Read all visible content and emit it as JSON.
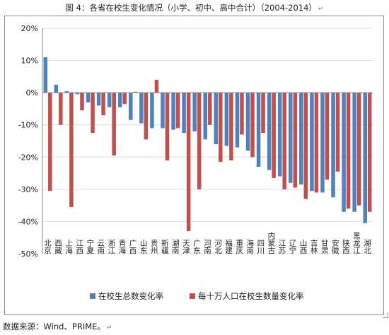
{
  "title": "图 4：各省在校生变化情况（小学、初中、高中合计）（2004-2014）",
  "source": "数据来源：Wind、PRIME。",
  "colors": {
    "series1": "#4f81bd",
    "series2": "#c0504d",
    "grid": "#d9d9d9",
    "axis": "#888888"
  },
  "chart_data": {
    "type": "bar",
    "ylim": [
      -50,
      20
    ],
    "yticks": [
      20,
      10,
      0,
      -10,
      -20,
      -30,
      -40,
      -50
    ],
    "ytick_labels": [
      "20%",
      "10%",
      "0%",
      "-10%",
      "-20%",
      "-30%",
      "-40%",
      "-50%"
    ],
    "grid": true,
    "legend": "bottom",
    "categories": [
      "北京",
      "西藏",
      "上海",
      "江西",
      "宁夏",
      "云南",
      "浙江",
      "青海",
      "广西",
      "山东",
      "贵州",
      "新疆",
      "湖南",
      "天津",
      "广东",
      "河南",
      "河北",
      "福建",
      "重庆",
      "海南",
      "四川",
      "内蒙古",
      "江苏",
      "辽宁",
      "山西",
      "吉林",
      "甘肃",
      "安徽",
      "陕西",
      "黑龙江",
      "湖北"
    ],
    "series": [
      {
        "name": "在校生总数变化率",
        "color": "#4f81bd",
        "values": [
          11,
          2.5,
          0.5,
          -0.5,
          -3,
          -4,
          -4.5,
          -4.5,
          -8.5,
          -9.5,
          -11,
          -11,
          -11.5,
          -12.5,
          -12,
          -14.5,
          -16,
          -16.5,
          -17,
          -18,
          -23,
          -24,
          -26,
          -28,
          -28.5,
          -30.5,
          -31,
          -32.5,
          -37,
          -37,
          -40.5
        ]
      },
      {
        "name": "每十万人口在校生数量变化率",
        "color": "#c0504d",
        "values": [
          -30.5,
          -10,
          -35.5,
          -5.5,
          -12.5,
          -7,
          -19.5,
          -3.5,
          0.3,
          -14.5,
          4,
          -21,
          -11,
          -43,
          -30,
          -10,
          -21.5,
          -21,
          -13,
          -20,
          -12.5,
          -26.5,
          -30,
          -29.5,
          -33,
          -31,
          -27,
          -24.5,
          -36,
          -35,
          -37
        ]
      }
    ]
  }
}
